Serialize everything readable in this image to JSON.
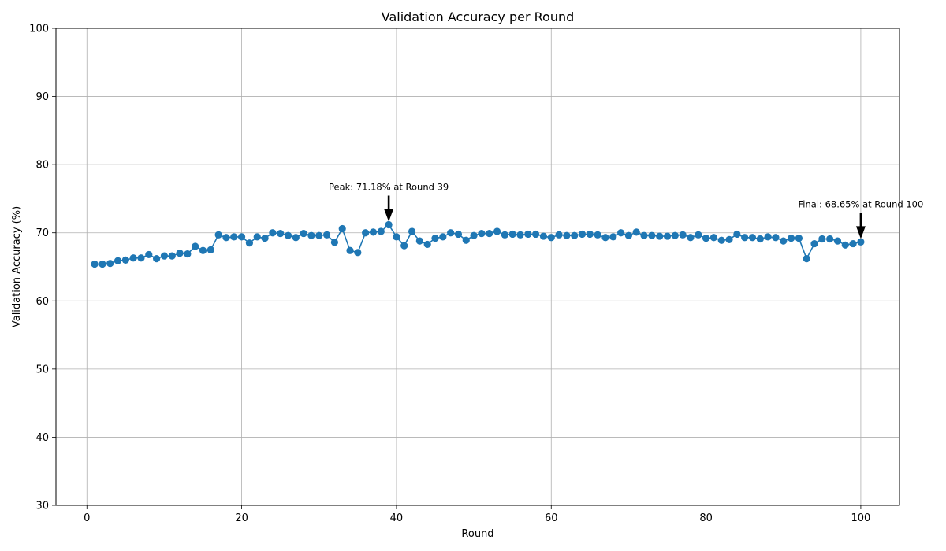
{
  "chart_data": {
    "type": "line",
    "title": "Validation Accuracy per Round",
    "xlabel": "Round",
    "ylabel": "Validation Accuracy (%)",
    "xlim": [
      -4,
      105
    ],
    "ylim": [
      30,
      100
    ],
    "xticks": [
      0,
      20,
      40,
      60,
      80,
      100
    ],
    "yticks": [
      30,
      40,
      50,
      60,
      70,
      80,
      90,
      100
    ],
    "grid": true,
    "series_color": "#1f77b4",
    "series": [
      {
        "x": [
          1,
          2,
          3,
          4,
          5,
          6,
          7,
          8,
          9,
          10,
          11,
          12,
          13,
          14,
          15,
          16,
          17,
          18,
          19,
          20,
          21,
          22,
          23,
          24,
          25,
          26,
          27,
          28,
          29,
          30,
          31,
          32,
          33,
          34,
          35,
          36,
          37,
          38,
          39,
          40,
          41,
          42,
          43,
          44,
          45,
          46,
          47,
          48,
          49,
          50,
          51,
          52,
          53,
          54,
          55,
          56,
          57,
          58,
          59,
          60,
          61,
          62,
          63,
          64,
          65,
          66,
          67,
          68,
          69,
          70,
          71,
          72,
          73,
          74,
          75,
          76,
          77,
          78,
          79,
          80,
          81,
          82,
          83,
          84,
          85,
          86,
          87,
          88,
          89,
          90,
          91,
          92,
          93,
          94,
          95,
          96,
          97,
          98,
          99,
          100
        ],
        "values": [
          65.4,
          65.4,
          65.5,
          65.9,
          66.0,
          66.3,
          66.3,
          66.8,
          66.2,
          66.6,
          66.6,
          67.0,
          66.9,
          68.0,
          67.4,
          67.5,
          69.7,
          69.3,
          69.4,
          69.4,
          68.5,
          69.4,
          69.2,
          70.0,
          69.9,
          69.6,
          69.3,
          69.9,
          69.6,
          69.6,
          69.7,
          68.6,
          70.6,
          67.4,
          67.1,
          70.0,
          70.1,
          70.2,
          71.18,
          69.4,
          68.1,
          70.2,
          68.8,
          68.3,
          69.2,
          69.4,
          70.0,
          69.8,
          68.9,
          69.6,
          69.9,
          69.9,
          70.2,
          69.7,
          69.8,
          69.7,
          69.8,
          69.8,
          69.5,
          69.3,
          69.7,
          69.6,
          69.6,
          69.8,
          69.8,
          69.7,
          69.3,
          69.4,
          70.0,
          69.6,
          70.1,
          69.6,
          69.6,
          69.5,
          69.5,
          69.6,
          69.7,
          69.3,
          69.7,
          69.2,
          69.3,
          68.9,
          69.0,
          69.8,
          69.3,
          69.3,
          69.1,
          69.4,
          69.3,
          68.8,
          69.2,
          69.2,
          66.2,
          68.4,
          69.1,
          69.1,
          68.8,
          68.2,
          68.4,
          68.65
        ]
      }
    ],
    "annotations": [
      {
        "text": "Peak: 71.18% at Round 39",
        "x": 39,
        "y": 71.18
      },
      {
        "text": "Final: 68.65% at Round 100",
        "x": 100,
        "y": 68.65
      }
    ]
  }
}
